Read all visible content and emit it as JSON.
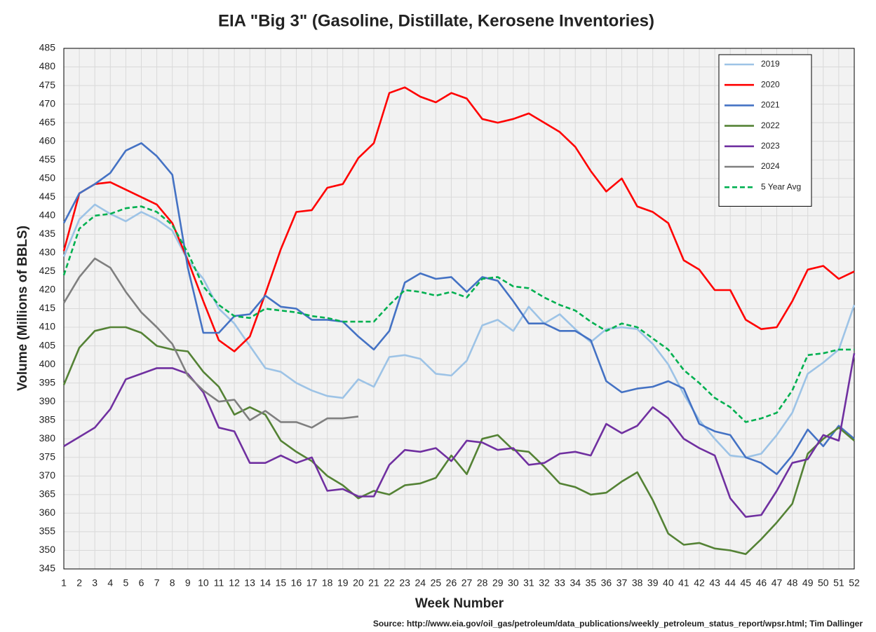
{
  "chart_data": {
    "type": "line",
    "title": "EIA \"Big 3\" (Gasoline, Distillate, Kerosene Inventories)",
    "x_label": "Week Number",
    "y_label": "Volume (Millions of BBLS)",
    "source": "Source: http://www.eia.gov/oil_gas/petroleum/data_publications/weekly_petroleum_status_report/wpsr.html; Tim Dallinger",
    "x": [
      1,
      2,
      3,
      4,
      5,
      6,
      7,
      8,
      9,
      10,
      11,
      12,
      13,
      14,
      15,
      16,
      17,
      18,
      19,
      20,
      21,
      22,
      23,
      24,
      25,
      26,
      27,
      28,
      29,
      30,
      31,
      32,
      33,
      34,
      35,
      36,
      37,
      38,
      39,
      40,
      41,
      42,
      43,
      44,
      45,
      46,
      47,
      48,
      49,
      50,
      51,
      52
    ],
    "xlim": [
      1,
      52
    ],
    "xticks": [
      1,
      2,
      3,
      4,
      5,
      6,
      7,
      8,
      9,
      10,
      11,
      12,
      13,
      14,
      15,
      16,
      17,
      18,
      19,
      20,
      21,
      22,
      23,
      24,
      25,
      26,
      27,
      28,
      29,
      30,
      31,
      32,
      33,
      34,
      35,
      36,
      37,
      38,
      39,
      40,
      41,
      42,
      43,
      44,
      45,
      46,
      47,
      48,
      49,
      50,
      51,
      52
    ],
    "ylim": [
      345,
      485
    ],
    "yticks": [
      345,
      350,
      355,
      360,
      365,
      370,
      375,
      380,
      385,
      390,
      395,
      400,
      405,
      410,
      415,
      420,
      425,
      430,
      435,
      440,
      445,
      450,
      455,
      460,
      465,
      470,
      475,
      480,
      485
    ],
    "grid": true,
    "legend": "upper right",
    "series": [
      {
        "name": "2019",
        "color": "#9dc3e6",
        "values": [
          429,
          439,
          443,
          440.5,
          438.5,
          441,
          439,
          436,
          428,
          423,
          415,
          411,
          405,
          399,
          398,
          395,
          393,
          391.5,
          391,
          396,
          394,
          402,
          402.5,
          401.5,
          397.5,
          397,
          401,
          410.5,
          412,
          409,
          415.5,
          411,
          413.5,
          409.5,
          406,
          409.5,
          410,
          409.5,
          405.5,
          400,
          392,
          385,
          380,
          375.5,
          375,
          376,
          381,
          387,
          397.5,
          400.5,
          404,
          416
        ]
      },
      {
        "name": "2020",
        "color": "#ff0000",
        "values": [
          430.5,
          446,
          448.5,
          449,
          447,
          445,
          443,
          438,
          428,
          417,
          406.5,
          403.5,
          407.5,
          419,
          431,
          441,
          441.5,
          447.5,
          448.5,
          455.5,
          459.5,
          473,
          474.5,
          472,
          470.5,
          473,
          471.5,
          466,
          465,
          466,
          467.5,
          465,
          462.5,
          458.5,
          452,
          446.5,
          450,
          442.5,
          441,
          438,
          428,
          425.5,
          420,
          420,
          412,
          409.5,
          410,
          417,
          425.5,
          426.5,
          423,
          425
        ]
      },
      {
        "name": "2021",
        "color": "#4472c4",
        "values": [
          438,
          446,
          448.5,
          451.5,
          457.5,
          459.5,
          456,
          451,
          426,
          408.5,
          408.5,
          413,
          413.5,
          418.5,
          415.5,
          415,
          412,
          412,
          411.5,
          407.5,
          404,
          409,
          422,
          424.5,
          423,
          423.5,
          419.5,
          423.5,
          422.5,
          417,
          411,
          411,
          409,
          409,
          406.5,
          395.5,
          392.5,
          393.5,
          394,
          395.5,
          393.5,
          384,
          382,
          381,
          375,
          373.5,
          370.5,
          375.5,
          382.5,
          378,
          383.5,
          380
        ]
      },
      {
        "name": "2022",
        "color": "#548235",
        "values": [
          394.5,
          404.5,
          409,
          410,
          410,
          408.5,
          405,
          404,
          403.5,
          398,
          394,
          386.5,
          388.5,
          386.5,
          379.5,
          376.5,
          374,
          370,
          367.5,
          364,
          366,
          365,
          367.5,
          368,
          369.5,
          375.5,
          370.5,
          380,
          381,
          377,
          376.5,
          372.5,
          368,
          367,
          365,
          365.5,
          368.5,
          371,
          363.5,
          354.5,
          351.5,
          352,
          350.5,
          350,
          349,
          353,
          357.5,
          362.5,
          376,
          380,
          383,
          379.5
        ]
      },
      {
        "name": "2023",
        "color": "#7030a0",
        "values": [
          378,
          380.5,
          383,
          388,
          396,
          397.5,
          399,
          399,
          397.5,
          392.5,
          383,
          382,
          373.5,
          373.5,
          375.5,
          373.5,
          375,
          366,
          366.5,
          364.5,
          364.5,
          373,
          377,
          376.5,
          377.5,
          374,
          379.5,
          379,
          377,
          377.5,
          373,
          373.5,
          376,
          376.5,
          375.5,
          384,
          381.5,
          383.5,
          388.5,
          385.5,
          380,
          377.5,
          375.5,
          364,
          359,
          359.5,
          366,
          373.5,
          374.5,
          381,
          379.5,
          403
        ]
      },
      {
        "name": "2024",
        "color": "#7f7f7f",
        "values": [
          416.5,
          423.5,
          428.5,
          426,
          419.5,
          414,
          410,
          405.5,
          397,
          393,
          390,
          390.5,
          385,
          387.5,
          384.5,
          384.5,
          383,
          385.5,
          385.5,
          386,
          null,
          null,
          null,
          null,
          null,
          null,
          null,
          null,
          null,
          null,
          null,
          null,
          null,
          null,
          null,
          null,
          null,
          null,
          null,
          null,
          null,
          null,
          null,
          null,
          null,
          null,
          null,
          null,
          null,
          null,
          null,
          null
        ]
      },
      {
        "name": "5 Year Avg",
        "color": "#00b050",
        "dashed": true,
        "values": [
          424,
          436.5,
          440,
          440.5,
          442,
          442.5,
          441,
          437.5,
          430,
          421,
          416,
          413,
          412.5,
          415,
          414.5,
          414,
          413,
          412.5,
          411.5,
          411.5,
          411.5,
          416,
          420,
          419.5,
          418.5,
          419.5,
          418,
          423,
          423.5,
          421,
          420.5,
          418,
          416,
          414.5,
          411.5,
          409,
          411,
          410,
          407,
          404,
          398.5,
          395,
          391,
          388.5,
          384.5,
          385.5,
          387,
          393,
          402.5,
          403,
          404,
          404
        ]
      }
    ]
  }
}
